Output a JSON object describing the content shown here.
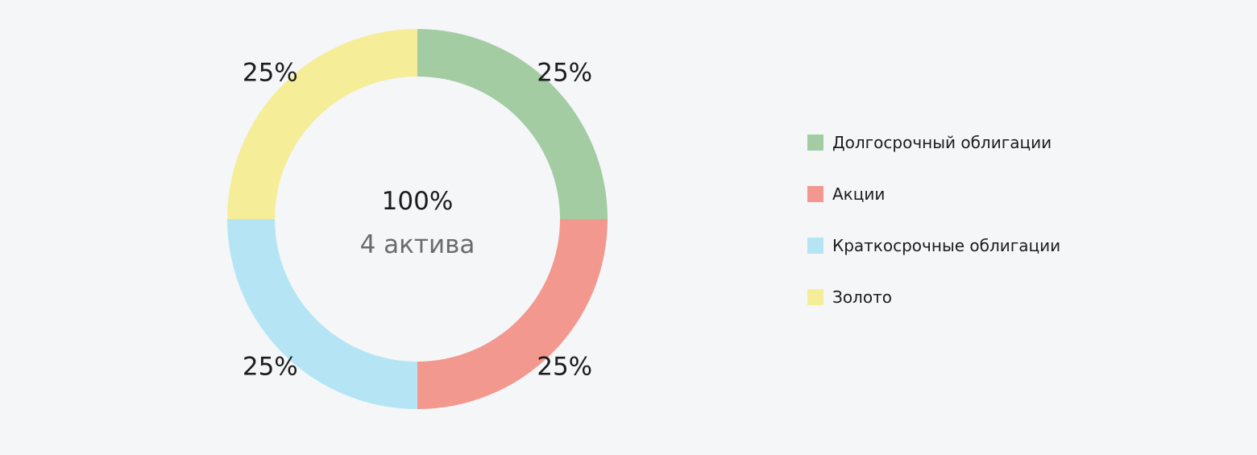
{
  "chart_data": {
    "type": "pie",
    "variant": "donut",
    "center": {
      "total": "100%",
      "subtitle": "4 актива"
    },
    "slices": [
      {
        "name": "Долгосрочный облигации",
        "value": 25,
        "label": "25%",
        "color": "#a3cca3"
      },
      {
        "name": "Акции",
        "value": 25,
        "label": "25%",
        "color": "#f2988f"
      },
      {
        "name": "Краткосрочные облигации",
        "value": 25,
        "label": "25%",
        "color": "#b5e5f5"
      },
      {
        "name": "Золото",
        "value": 25,
        "label": "25%",
        "color": "#f5ed97"
      }
    ],
    "legend_position": "right"
  }
}
